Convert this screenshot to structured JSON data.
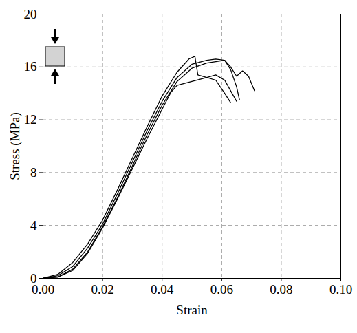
{
  "chart_data": {
    "type": "line",
    "x_label": "Strain",
    "y_label": "Stress (MPa)",
    "xlim": [
      0,
      0.1
    ],
    "ylim": [
      0,
      20
    ],
    "xticks": [
      {
        "value": 0,
        "label": "0.00"
      },
      {
        "value": 0.02,
        "label": "0.02"
      },
      {
        "value": 0.04,
        "label": "0.04"
      },
      {
        "value": 0.06,
        "label": "0.06"
      },
      {
        "value": 0.08,
        "label": "0.08"
      },
      {
        "value": 0.1,
        "label": "0.10"
      }
    ],
    "yticks": [
      0,
      4,
      8,
      12,
      16,
      20
    ],
    "grid": true,
    "line_style": "solid",
    "series": [
      {
        "color": "#000000",
        "x": [
          0,
          0.005,
          0.01,
          0.015,
          0.02,
          0.025,
          0.03,
          0.035,
          0.04,
          0.045,
          0.049,
          0.051,
          0.052,
          0.055,
          0.058,
          0.061,
          0.063
        ],
        "values": [
          0,
          0.3,
          1.2,
          2.6,
          4.4,
          6.7,
          9.1,
          11.5,
          13.8,
          15.6,
          16.6,
          16.8,
          15.4,
          15.2,
          15.0,
          14.0,
          13.3
        ]
      },
      {
        "color": "#000000",
        "x": [
          0,
          0.005,
          0.01,
          0.015,
          0.02,
          0.025,
          0.03,
          0.035,
          0.04,
          0.045,
          0.05,
          0.055,
          0.058,
          0.061,
          0.063,
          0.065,
          0.066
        ],
        "values": [
          0,
          0.2,
          0.9,
          2.3,
          4.1,
          6.4,
          8.8,
          11.2,
          13.4,
          15.2,
          16.2,
          16.5,
          16.6,
          16.5,
          15.8,
          14.5,
          13.5
        ]
      },
      {
        "color": "#000000",
        "x": [
          0,
          0.005,
          0.01,
          0.015,
          0.02,
          0.025,
          0.03,
          0.035,
          0.04,
          0.045,
          0.05,
          0.055,
          0.058,
          0.061,
          0.063,
          0.065,
          0.067,
          0.069,
          0.071
        ],
        "values": [
          0,
          0.1,
          0.7,
          2.0,
          3.9,
          6.1,
          8.5,
          10.9,
          13.1,
          14.9,
          15.9,
          16.3,
          16.4,
          16.5,
          16.0,
          15.3,
          15.7,
          15.3,
          14.2
        ]
      },
      {
        "color": "#000000",
        "x": [
          0,
          0.005,
          0.01,
          0.015,
          0.02,
          0.025,
          0.03,
          0.035,
          0.04,
          0.043,
          0.045,
          0.05,
          0.055,
          0.058,
          0.061,
          0.063,
          0.065
        ],
        "values": [
          0,
          0.1,
          0.6,
          1.9,
          3.8,
          6.0,
          8.3,
          10.6,
          12.8,
          14.1,
          14.6,
          14.9,
          15.2,
          15.4,
          15.0,
          14.2,
          13.4
        ]
      }
    ]
  }
}
